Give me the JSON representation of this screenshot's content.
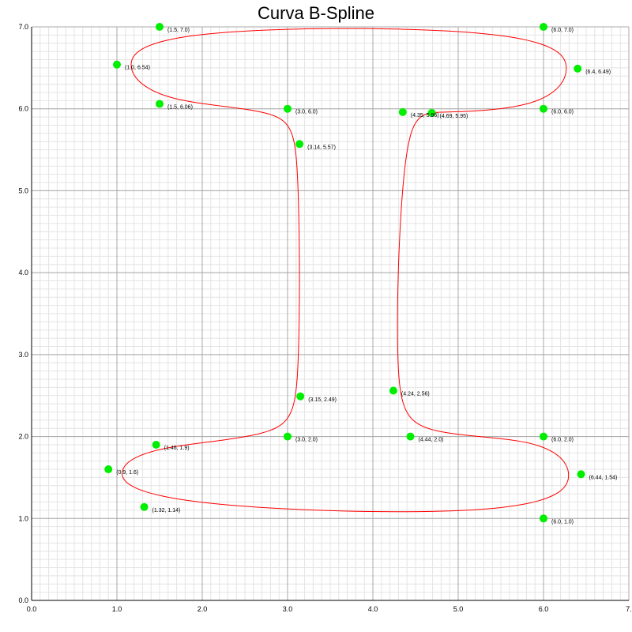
{
  "chart_data": {
    "type": "scatter",
    "title": "Curva B-Spline",
    "xlabel": "",
    "ylabel": "",
    "xlim": [
      0,
      7
    ],
    "ylim": [
      0,
      7
    ],
    "x_ticks": [
      "0.0",
      "1.0",
      "2.0",
      "3.0",
      "4.0",
      "5.0",
      "6.0",
      "7."
    ],
    "y_ticks": [
      "0.0",
      "1.0",
      "2.0",
      "3.0",
      "4.0",
      "5.0",
      "6.0",
      "7.0"
    ],
    "grid": true,
    "minor_grid_step": 0.1,
    "curve_color": "#ff0000",
    "point_color": "#00ee00",
    "control_points": [
      {
        "x": 1.5,
        "y": 7.0,
        "label": "(1.5, 7.0)"
      },
      {
        "x": 6.0,
        "y": 7.0,
        "label": "(6.0, 7.0)"
      },
      {
        "x": 6.4,
        "y": 6.49,
        "label": "(6.4, 6.49)"
      },
      {
        "x": 6.0,
        "y": 6.0,
        "label": "(6.0, 6.0)"
      },
      {
        "x": 4.69,
        "y": 5.95,
        "label": "(4.69, 5.95)"
      },
      {
        "x": 4.35,
        "y": 5.96,
        "label": "(4.35, 5.96)"
      },
      {
        "x": 4.24,
        "y": 2.56,
        "label": "(4.24, 2.56)"
      },
      {
        "x": 4.44,
        "y": 2.0,
        "label": "(4.44, 2.0)"
      },
      {
        "x": 6.0,
        "y": 2.0,
        "label": "(6.0, 2.0)"
      },
      {
        "x": 6.44,
        "y": 1.54,
        "label": "(6.44, 1.54)"
      },
      {
        "x": 6.0,
        "y": 1.0,
        "label": "(6.0, 1.0)"
      },
      {
        "x": 1.32,
        "y": 1.14,
        "label": "(1.32, 1.14)"
      },
      {
        "x": 0.9,
        "y": 1.6,
        "label": "(0.9, 1.6)"
      },
      {
        "x": 1.46,
        "y": 1.9,
        "label": "(1.46, 1.9)"
      },
      {
        "x": 3.0,
        "y": 2.0,
        "label": "(3.0, 2.0)"
      },
      {
        "x": 3.15,
        "y": 2.49,
        "label": "(3.15, 2.49)"
      },
      {
        "x": 3.14,
        "y": 5.57,
        "label": "(3.14, 5.57)"
      },
      {
        "x": 3.0,
        "y": 6.0,
        "label": "(3.0, 6.0)"
      },
      {
        "x": 1.5,
        "y": 6.06,
        "label": "(1.5, 6.06)"
      },
      {
        "x": 1.0,
        "y": 6.54,
        "label": "(1.0, 6.54)"
      }
    ]
  }
}
